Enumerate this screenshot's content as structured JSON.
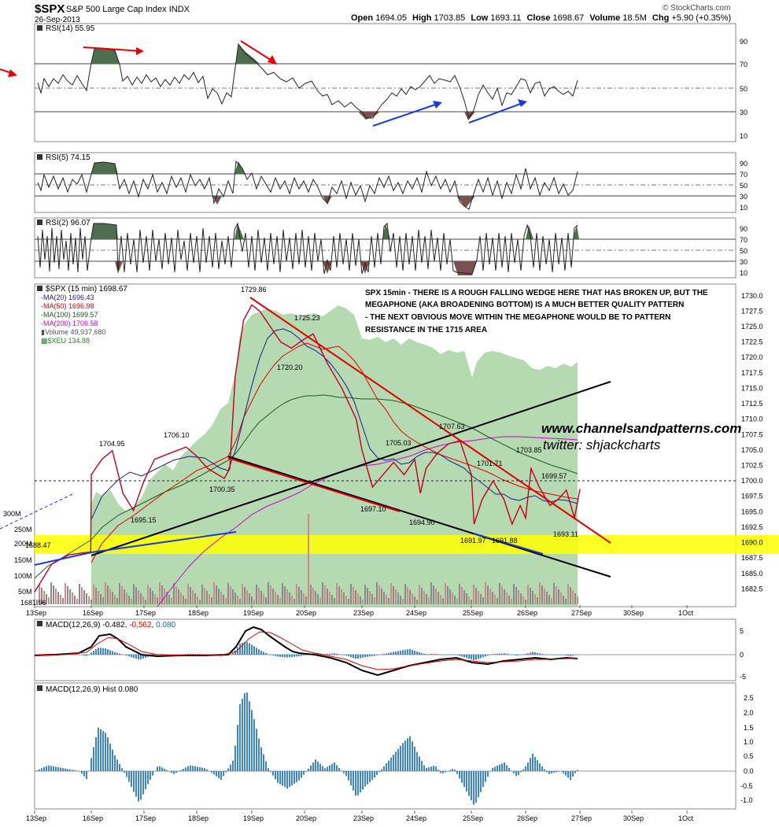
{
  "header": {
    "symbol": "$SPX",
    "name": "S&P 500 Large Cap Index",
    "exchange": "INDX",
    "date": "26-Sep-2013",
    "open_label": "Open",
    "open": "1694.05",
    "high_label": "High",
    "high": "1703.85",
    "low_label": "Low",
    "low": "1693.11",
    "close_label": "Close",
    "close": "1698.67",
    "volume_label": "Volume",
    "volume": "18.5M",
    "chg_label": "Chg",
    "chg": "+5.90 (+0.35%)",
    "brand": "© StockCharts.com",
    "up_color": "#00aa00"
  },
  "panels": {
    "rsi14": {
      "label": "RSI(14) 55.95",
      "ticks": [
        "90",
        "70",
        "50",
        "30",
        "10"
      ]
    },
    "rsi5": {
      "label": "RSI(5) 74.15",
      "ticks": [
        "90",
        "70",
        "50",
        "30",
        "10"
      ]
    },
    "rsi2": {
      "label": "RSI(2) 96.07",
      "ticks": [
        "90",
        "70",
        "50",
        "30",
        "10"
      ]
    },
    "macd": {
      "label_prefix": "MACD(12,26,9)",
      "v1": "-0.482",
      "v2": "-0.562",
      "v3": "0.080",
      "ticks": [
        "5",
        "0",
        "-5"
      ]
    },
    "hist": {
      "label": "MACD(12,26,9) Hist 0.080",
      "ticks": [
        "2.5",
        "2.0",
        "1.5",
        "1.0",
        "0.5",
        "0.0",
        "-0.5",
        "-1.0"
      ]
    }
  },
  "legend": [
    {
      "text": "$SPX (15 min) 1698.67",
      "color": "#000000"
    },
    {
      "text": "MA(20) 1696.43",
      "color": "#1a1a8c"
    },
    {
      "text": "MA(50) 1696.98",
      "color": "#e00000"
    },
    {
      "text": "MA(100) 1699.57",
      "color": "#1e5a1e"
    },
    {
      "text": "MA(200) 1706.58",
      "color": "#d000d0"
    },
    {
      "text": "Volume 49,937,680",
      "color": "#555555"
    },
    {
      "text": "$XEU 134.88",
      "color": "#2e7d2e"
    }
  ],
  "annotation": [
    "SPX 15min - THERE IS A ROUGH FALLING WEDGE HERE THAT HAS BROKEN UP, BUT THE",
    "MEGAPHONE (AKA BROADENING BOTTOM) IS A MUCH BETTER QUALITY PATTERN",
    "- THE NEXT OBVIOUS MOVE WITHIN THE MEGAPHONE WOULD BE TO PATTERN",
    "RESISTANCE IN THE 1715 AREA"
  ],
  "watermark": {
    "site": "www.channelsandpatterns.com",
    "twitter": "twitter: shjackcharts"
  },
  "chart_data": {
    "type": "line",
    "price_axis": {
      "ylim": [
        1680,
        1731.5
      ],
      "ticks": [
        "1730.0",
        "1727.5",
        "1725.0",
        "1722.5",
        "1720.0",
        "1717.5",
        "1715.0",
        "1712.5",
        "1710.0",
        "1707.5",
        "1705.0",
        "1702.5",
        "1700.0",
        "1697.5",
        "1695.0",
        "1692.5",
        "1690.0",
        "1687.5",
        "1685.0",
        "1682.5"
      ]
    },
    "volume_axis_labels": [
      "300M",
      "250M",
      "200M",
      "150M",
      "100M",
      "50M"
    ],
    "x_labels": [
      "13Sep",
      "16Sep",
      "17Sep",
      "18Sep",
      "19Sep",
      "20Sep",
      "23Sep",
      "24Sep",
      "25Sep",
      "26Sep",
      "27Sep",
      "30Sep",
      "1Oct"
    ],
    "price_labels": [
      "1729.86",
      "1725.23",
      "1720.20",
      "1706.10",
      "1704.95",
      "1700.35",
      "1695.15",
      "1688.47",
      "1681.96",
      "1705.03",
      "1697.10",
      "1694.90",
      "1707.63",
      "1701.71",
      "1703.85",
      "1699.57",
      "1691.97",
      "1691.88",
      "1693.11"
    ],
    "close_series": [
      {
        "x": 0.0,
        "y": 1682.0
      },
      {
        "x": 0.3,
        "y": 1686.5
      },
      {
        "x": 0.6,
        "y": 1688.0
      },
      {
        "x": 0.99,
        "y": 1688.5
      },
      {
        "x": 1.0,
        "y": 1701.0
      },
      {
        "x": 1.2,
        "y": 1703.5
      },
      {
        "x": 1.4,
        "y": 1704.9
      },
      {
        "x": 1.6,
        "y": 1698.0
      },
      {
        "x": 1.8,
        "y": 1695.2
      },
      {
        "x": 2.0,
        "y": 1700.0
      },
      {
        "x": 2.2,
        "y": 1703.5
      },
      {
        "x": 2.5,
        "y": 1704.5
      },
      {
        "x": 2.8,
        "y": 1705.5
      },
      {
        "x": 3.0,
        "y": 1704.0
      },
      {
        "x": 3.2,
        "y": 1702.0
      },
      {
        "x": 3.5,
        "y": 1700.4
      },
      {
        "x": 3.6,
        "y": 1702.0
      },
      {
        "x": 3.7,
        "y": 1717.0
      },
      {
        "x": 3.85,
        "y": 1726.0
      },
      {
        "x": 4.0,
        "y": 1728.5
      },
      {
        "x": 4.15,
        "y": 1727.5
      },
      {
        "x": 4.35,
        "y": 1725.0
      },
      {
        "x": 4.55,
        "y": 1722.5
      },
      {
        "x": 4.75,
        "y": 1721.5
      },
      {
        "x": 5.0,
        "y": 1723.0
      },
      {
        "x": 5.15,
        "y": 1723.8
      },
      {
        "x": 5.4,
        "y": 1719.0
      },
      {
        "x": 5.65,
        "y": 1715.0
      },
      {
        "x": 5.9,
        "y": 1710.0
      },
      {
        "x": 6.0,
        "y": 1705.0
      },
      {
        "x": 6.2,
        "y": 1699.0
      },
      {
        "x": 6.4,
        "y": 1701.0
      },
      {
        "x": 6.6,
        "y": 1703.0
      },
      {
        "x": 6.8,
        "y": 1701.0
      },
      {
        "x": 7.0,
        "y": 1703.5
      },
      {
        "x": 7.1,
        "y": 1698.0
      },
      {
        "x": 7.2,
        "y": 1702.0
      },
      {
        "x": 7.4,
        "y": 1704.5
      },
      {
        "x": 7.6,
        "y": 1706.0
      },
      {
        "x": 7.8,
        "y": 1706.5
      },
      {
        "x": 8.0,
        "y": 1701.0
      },
      {
        "x": 8.05,
        "y": 1693.0
      },
      {
        "x": 8.2,
        "y": 1697.0
      },
      {
        "x": 8.4,
        "y": 1700.0
      },
      {
        "x": 8.6,
        "y": 1697.0
      },
      {
        "x": 8.75,
        "y": 1693.0
      },
      {
        "x": 8.9,
        "y": 1696.0
      },
      {
        "x": 9.0,
        "y": 1694.0
      },
      {
        "x": 9.1,
        "y": 1702.0
      },
      {
        "x": 9.25,
        "y": 1699.0
      },
      {
        "x": 9.45,
        "y": 1696.0
      },
      {
        "x": 9.6,
        "y": 1697.0
      },
      {
        "x": 9.75,
        "y": 1698.5
      },
      {
        "x": 9.9,
        "y": 1694.0
      },
      {
        "x": 10.0,
        "y": 1698.67
      }
    ]
  }
}
